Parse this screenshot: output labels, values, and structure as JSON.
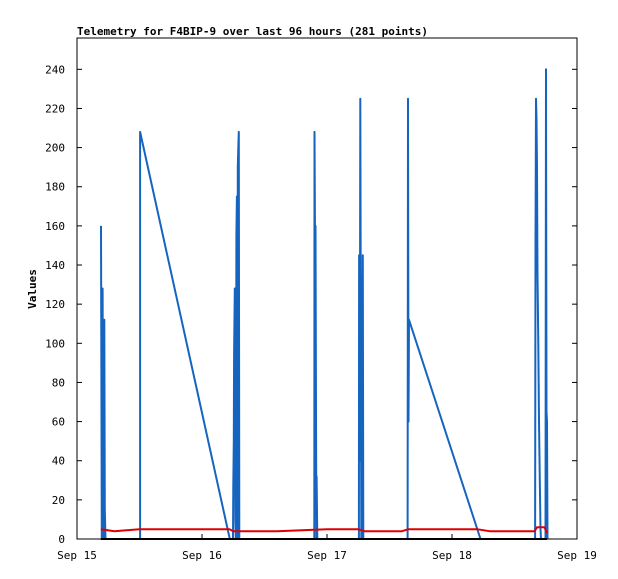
{
  "chart_data": {
    "type": "line",
    "title": "Telemetry for F4BIP-9 over last 96 hours (281 points)",
    "xlabel": "",
    "ylabel": "Values",
    "x_ticks": [
      "Sep 15",
      "Sep 16",
      "Sep 17",
      "Sep 18",
      "Sep 19"
    ],
    "x_tick_days": [
      0,
      1,
      2,
      3,
      4
    ],
    "xlim_days": [
      0,
      4
    ],
    "y_ticks": [
      0,
      20,
      40,
      60,
      80,
      100,
      120,
      140,
      160,
      180,
      200,
      220,
      240
    ],
    "ylim": [
      0,
      256
    ],
    "grid": false,
    "colors": {
      "series_blue": "#1565c0",
      "series_red": "#dd0000",
      "series_black": "#000000",
      "frame": "#000000",
      "background": "#ffffff"
    },
    "series": [
      {
        "color": "#1565c0",
        "points": [
          [
            0.192,
            160
          ],
          [
            0.195,
            80
          ],
          [
            0.198,
            0
          ],
          [
            0.205,
            128
          ],
          [
            0.21,
            10
          ],
          [
            0.213,
            0
          ],
          [
            0.218,
            112
          ],
          [
            0.222,
            15
          ],
          [
            0.228,
            0
          ],
          [
            0.505,
            0
          ],
          [
            0.505,
            208
          ],
          [
            1.222,
            0
          ],
          [
            1.248,
            0
          ],
          [
            1.25,
            28
          ],
          [
            1.254,
            50
          ],
          [
            1.257,
            95
          ],
          [
            1.262,
            128
          ],
          [
            1.266,
            10
          ],
          [
            1.27,
            0
          ],
          [
            1.275,
            155
          ],
          [
            1.279,
            175
          ],
          [
            1.282,
            0
          ],
          [
            1.286,
            190
          ],
          [
            1.29,
            200
          ],
          [
            1.294,
            208
          ],
          [
            1.298,
            0
          ],
          [
            1.898,
            0
          ],
          [
            1.9,
            208
          ],
          [
            1.904,
            155
          ],
          [
            1.908,
            160
          ],
          [
            1.912,
            65
          ],
          [
            1.915,
            0
          ],
          [
            1.917,
            32
          ],
          [
            1.922,
            0
          ],
          [
            2.255,
            0
          ],
          [
            2.257,
            145
          ],
          [
            2.262,
            40
          ],
          [
            2.266,
            225
          ],
          [
            2.27,
            112
          ],
          [
            2.274,
            0
          ],
          [
            2.278,
            80
          ],
          [
            2.282,
            72
          ],
          [
            2.286,
            145
          ],
          [
            2.29,
            0
          ],
          [
            2.645,
            0
          ],
          [
            2.648,
            225
          ],
          [
            2.652,
            60
          ],
          [
            2.656,
            112
          ],
          [
            3.228,
            0
          ],
          [
            3.665,
            0
          ],
          [
            3.668,
            150
          ],
          [
            3.672,
            225
          ],
          [
            3.676,
            215
          ],
          [
            3.68,
            190
          ],
          [
            3.684,
            135
          ],
          [
            3.69,
            100
          ],
          [
            3.696,
            60
          ],
          [
            3.702,
            30
          ],
          [
            3.708,
            5
          ],
          [
            3.712,
            0
          ],
          [
            3.748,
            0
          ],
          [
            3.752,
            240
          ],
          [
            3.756,
            65
          ],
          [
            3.76,
            60
          ],
          [
            3.764,
            0
          ]
        ]
      },
      {
        "color": "#dd0000",
        "points": [
          [
            0.19,
            5
          ],
          [
            0.3,
            4
          ],
          [
            0.5,
            5
          ],
          [
            1.0,
            5
          ],
          [
            1.22,
            5
          ],
          [
            1.25,
            4
          ],
          [
            1.6,
            4
          ],
          [
            2.0,
            5
          ],
          [
            2.25,
            5
          ],
          [
            2.3,
            4
          ],
          [
            2.6,
            4
          ],
          [
            2.65,
            5
          ],
          [
            3.2,
            5
          ],
          [
            3.3,
            4
          ],
          [
            3.66,
            4
          ],
          [
            3.68,
            6
          ],
          [
            3.74,
            6
          ],
          [
            3.76,
            3
          ]
        ]
      },
      {
        "color": "#000000",
        "points": [
          [
            0.19,
            0
          ],
          [
            3.76,
            0
          ]
        ]
      }
    ]
  }
}
